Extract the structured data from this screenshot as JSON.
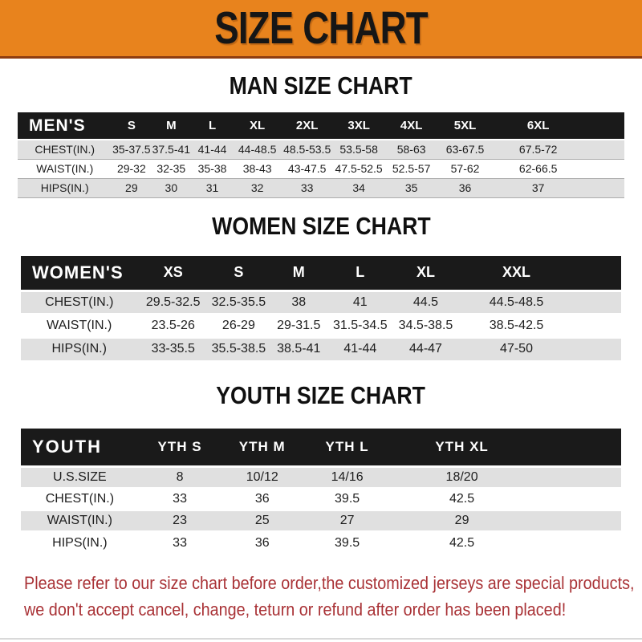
{
  "banner": {
    "title": "SIZE CHART",
    "bg_color": "#E8831D",
    "edge_color": "#8F3D10"
  },
  "sections": [
    {
      "id": "men",
      "heading": "MAN SIZE CHART",
      "table": {
        "corner": "MEN'S",
        "columns": [
          "S",
          "M",
          "L",
          "XL",
          "2XL",
          "3XL",
          "4XL",
          "5XL",
          "6XL"
        ],
        "rows": [
          {
            "label": "CHEST(IN.)",
            "values": [
              "35-37.5",
              "37.5-41",
              "41-44",
              "44-48.5",
              "48.5-53.5",
              "53.5-58",
              "58-63",
              "63-67.5",
              "67.5-72"
            ]
          },
          {
            "label": "WAIST(IN.)",
            "values": [
              "29-32",
              "32-35",
              "35-38",
              "38-43",
              "43-47.5",
              "47.5-52.5",
              "52.5-57",
              "57-62",
              "62-66.5"
            ]
          },
          {
            "label": "HIPS(IN.)",
            "values": [
              "29",
              "30",
              "31",
              "32",
              "33",
              "34",
              "35",
              "36",
              "37"
            ]
          }
        ]
      }
    },
    {
      "id": "women",
      "heading": "WOMEN SIZE CHART",
      "table": {
        "corner": "WOMEN'S",
        "columns": [
          "XS",
          "S",
          "M",
          "L",
          "XL",
          "XXL"
        ],
        "rows": [
          {
            "label": "CHEST(IN.)",
            "values": [
              "29.5-32.5",
              "32.5-35.5",
              "38",
              "41",
              "44.5",
              "44.5-48.5"
            ]
          },
          {
            "label": "WAIST(IN.)",
            "values": [
              "23.5-26",
              "26-29",
              "29-31.5",
              "31.5-34.5",
              "34.5-38.5",
              "38.5-42.5"
            ]
          },
          {
            "label": "HIPS(IN.)",
            "values": [
              "33-35.5",
              "35.5-38.5",
              "38.5-41",
              "41-44",
              "44-47",
              "47-50"
            ]
          }
        ]
      }
    },
    {
      "id": "youth",
      "heading": "YOUTH SIZE CHART",
      "table": {
        "corner": "YOUTH",
        "columns": [
          "YTH S",
          "YTH M",
          "YTH L",
          "YTH XL"
        ],
        "rows": [
          {
            "label": "U.S.SIZE",
            "values": [
              "8",
              "10/12",
              "14/16",
              "18/20"
            ]
          },
          {
            "label": "CHEST(IN.)",
            "values": [
              "33",
              "36",
              "39.5",
              "42.5"
            ]
          },
          {
            "label": "WAIST(IN.)",
            "values": [
              "23",
              "25",
              "27",
              "29"
            ]
          },
          {
            "label": "HIPS(IN.)",
            "values": [
              "33",
              "36",
              "39.5",
              "42.5"
            ]
          }
        ]
      }
    }
  ],
  "footer": {
    "line1": "Please refer to our size chart before order,the customized jerseys are special products,",
    "line2": "we don't accept cancel, change, teturn or refund after order has been placed!",
    "text_color": "#A93236"
  }
}
